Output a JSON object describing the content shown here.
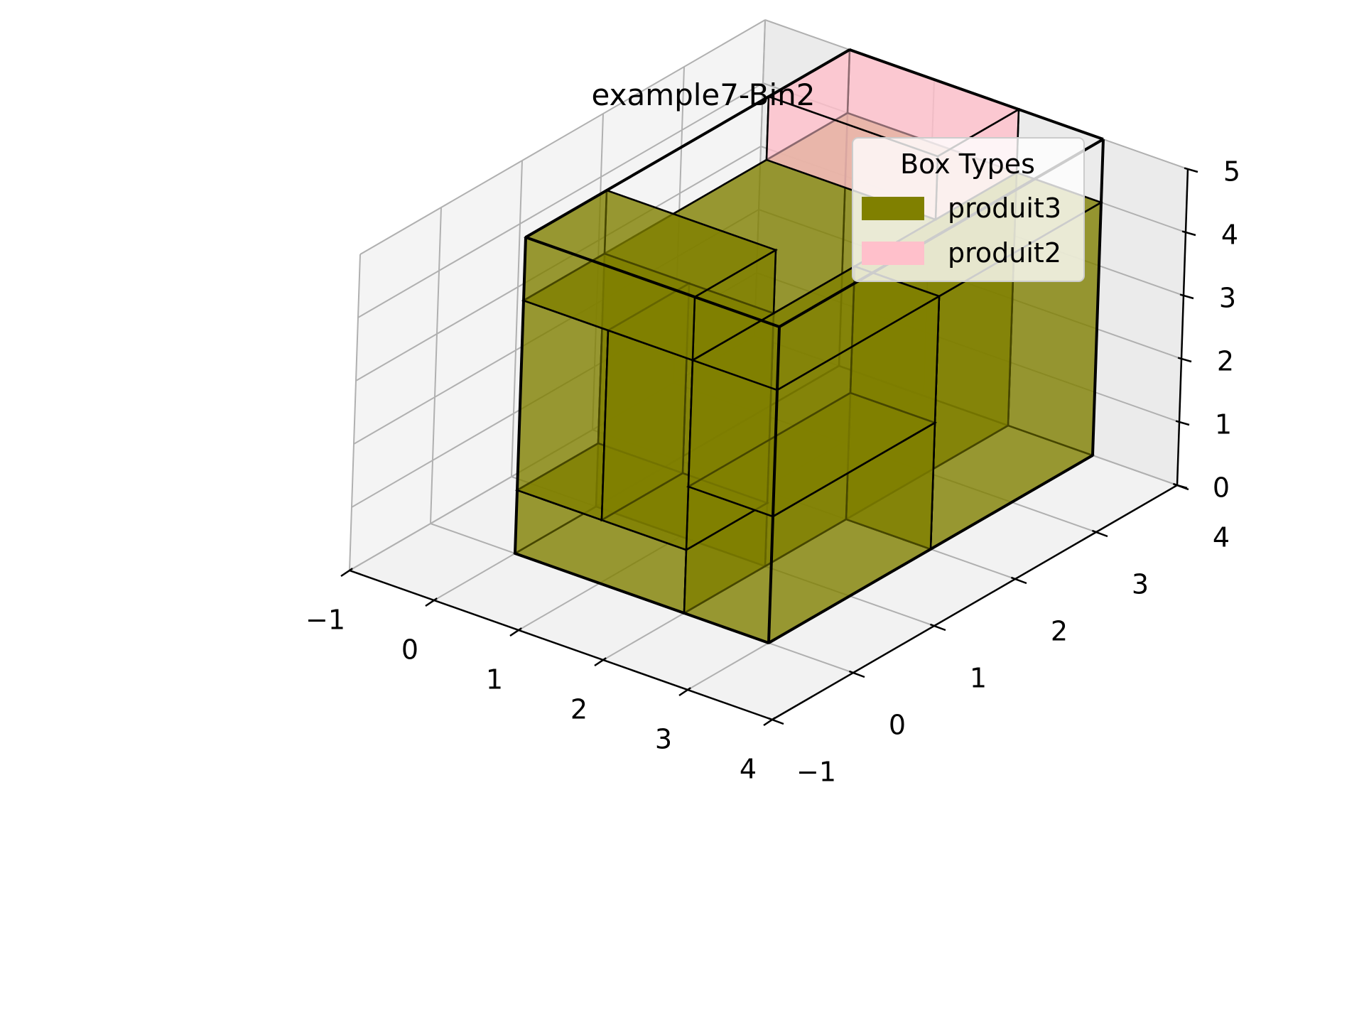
{
  "chart_data": {
    "type": "3d-bar",
    "title": "example7-Bin2",
    "xlabel": "",
    "ylabel": "",
    "zlabel": "",
    "xlim": [
      -1,
      4
    ],
    "ylim": [
      -1,
      4
    ],
    "zlim": [
      0,
      5
    ],
    "x_ticks": [
      "−1",
      "0",
      "1",
      "2",
      "3",
      "4"
    ],
    "y_ticks": [
      "−1",
      "0",
      "1",
      "2",
      "3",
      "4"
    ],
    "z_ticks": [
      "0",
      "1",
      "2",
      "3",
      "4",
      "5"
    ],
    "grid": true,
    "legend": {
      "title": "Box Types",
      "placement": "top-right",
      "entries": [
        {
          "label": "produit3",
          "color": "#808000"
        },
        {
          "label": "produit2",
          "color": "#ffc0cb"
        }
      ]
    },
    "bin": {
      "x": [
        0,
        3
      ],
      "y": [
        0,
        4
      ],
      "z": [
        0,
        5
      ]
    },
    "boxes": [
      {
        "type": "produit3",
        "x": [
          0,
          2
        ],
        "y": [
          0,
          1
        ],
        "z": [
          0,
          1
        ]
      },
      {
        "type": "produit3",
        "x": [
          0,
          1
        ],
        "y": [
          0,
          1
        ],
        "z": [
          1,
          4
        ]
      },
      {
        "type": "produit3",
        "x": [
          1,
          2
        ],
        "y": [
          0,
          1
        ],
        "z": [
          1,
          4
        ]
      },
      {
        "type": "produit3",
        "x": [
          0,
          2
        ],
        "y": [
          0,
          1
        ],
        "z": [
          4,
          5
        ]
      },
      {
        "type": "produit3",
        "x": [
          2,
          3
        ],
        "y": [
          0,
          2
        ],
        "z": [
          0,
          2
        ]
      },
      {
        "type": "produit3",
        "x": [
          2,
          3
        ],
        "y": [
          0,
          2
        ],
        "z": [
          2,
          4
        ]
      },
      {
        "type": "produit3",
        "x": [
          0,
          2
        ],
        "y": [
          1,
          4
        ],
        "z": [
          0,
          4
        ]
      },
      {
        "type": "produit3",
        "x": [
          2,
          3
        ],
        "y": [
          2,
          4
        ],
        "z": [
          0,
          4
        ]
      },
      {
        "type": "produit2",
        "x": [
          0,
          2
        ],
        "y": [
          3,
          4
        ],
        "z": [
          4,
          5
        ]
      }
    ]
  }
}
